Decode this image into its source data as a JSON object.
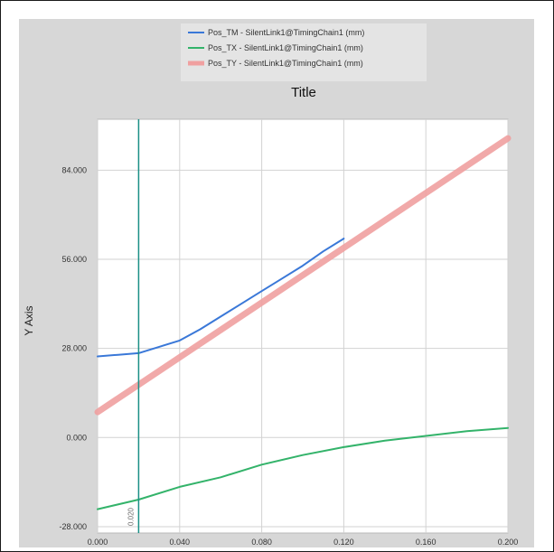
{
  "chart_data": {
    "type": "line",
    "title": "Title",
    "ylabel": "Y Axis",
    "xlabel": "",
    "xlim": [
      0.0,
      0.2
    ],
    "ylim": [
      -30,
      100
    ],
    "x_ticks": [
      "0.000",
      "0.040",
      "0.080",
      "0.120",
      "0.160",
      "0.200"
    ],
    "x_tick_values": [
      0.0,
      0.04,
      0.08,
      0.12,
      0.16,
      0.2
    ],
    "y_ticks": [
      "-28.000",
      "0.000",
      "28.000",
      "56.000",
      "84.000"
    ],
    "y_tick_values": [
      -28,
      0,
      28,
      56,
      84
    ],
    "grid": true,
    "legend_position": "top-center",
    "cursor": {
      "x": 0.02,
      "label": "0.020"
    },
    "series": [
      {
        "name": "Pos_TM - SilentLink1@TimingChain1 (mm)",
        "color": "#3a78d8",
        "x": [
          0.0,
          0.01,
          0.02,
          0.03,
          0.04,
          0.05,
          0.06,
          0.07,
          0.08,
          0.09,
          0.1,
          0.11,
          0.12
        ],
        "y": [
          25.5,
          26.0,
          26.5,
          28.5,
          30.5,
          34.0,
          38.0,
          42.0,
          46.0,
          50.0,
          54.0,
          58.5,
          62.5
        ]
      },
      {
        "name": "Pos_TX - SilentLink1@TimingChain1 (mm)",
        "color": "#33b36a",
        "x": [
          0.0,
          0.02,
          0.04,
          0.06,
          0.08,
          0.1,
          0.12,
          0.14,
          0.16,
          0.18,
          0.2
        ],
        "y": [
          -22.5,
          -19.5,
          -15.5,
          -12.5,
          -8.5,
          -5.5,
          -3.0,
          -1.0,
          0.5,
          2.0,
          3.0
        ]
      },
      {
        "name": "Pos_TY - SilentLink1@TimingChain1 (mm)",
        "color": "#f0a0a0",
        "x": [
          0.0,
          0.2
        ],
        "y": [
          8.0,
          94.0
        ]
      }
    ]
  }
}
